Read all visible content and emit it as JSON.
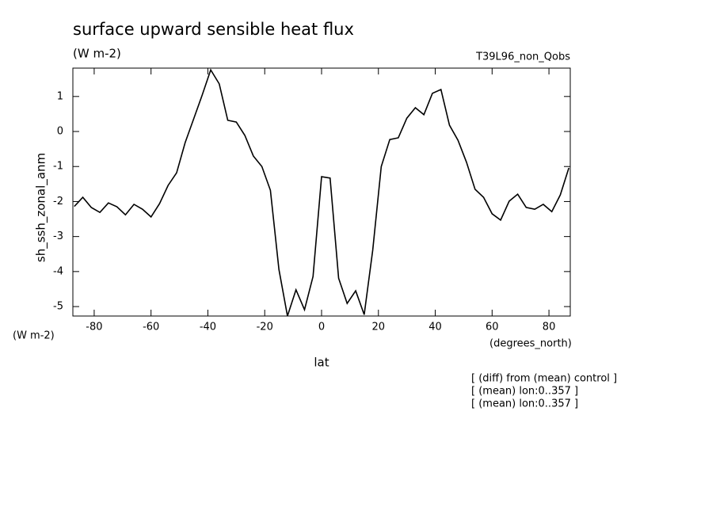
{
  "chart_data": {
    "type": "line",
    "title": "surface upward sensible heat flux",
    "units": "(W m-2)",
    "dataset": "T39L96_non_Qobs",
    "y_label": "sh_ssh_zonal_anm",
    "y_units": "(W m-2)",
    "x_units": "(degrees_north)",
    "x_label": "lat",
    "notes": [
      "[ (diff) from (mean) control ]",
      "[ (mean) lon:0..357 ]",
      "[ (mean) lon:0..357 ]"
    ],
    "x": [
      -87,
      -84,
      -81,
      -78,
      -75,
      -72,
      -69,
      -66,
      -63,
      -60,
      -57,
      -54,
      -51,
      -48,
      -45,
      -42,
      -39,
      -36,
      -33,
      -30,
      -27,
      -24,
      -21,
      -18,
      -15,
      -12,
      -9,
      -6,
      -3,
      0,
      3,
      6,
      9,
      12,
      15,
      18,
      21,
      24,
      27,
      30,
      33,
      36,
      39,
      42,
      45,
      48,
      51,
      54,
      57,
      60,
      63,
      66,
      69,
      72,
      75,
      78,
      81,
      84,
      87
    ],
    "values": [
      -2.14,
      -1.88,
      -2.17,
      -2.31,
      -2.04,
      -2.15,
      -2.38,
      -2.08,
      -2.22,
      -2.44,
      -2.06,
      -1.54,
      -1.18,
      -0.32,
      0.36,
      1.04,
      1.76,
      1.36,
      0.32,
      0.27,
      -0.11,
      -0.7,
      -1.0,
      -1.68,
      -3.94,
      -5.27,
      -4.52,
      -5.09,
      -4.14,
      -1.29,
      -1.33,
      -4.19,
      -4.91,
      -4.55,
      -5.23,
      -3.39,
      -1.0,
      -0.23,
      -0.18,
      0.38,
      0.68,
      0.48,
      1.09,
      1.2,
      0.18,
      -0.25,
      -0.88,
      -1.65,
      -1.88,
      -2.35,
      -2.53,
      -1.99,
      -1.79,
      -2.17,
      -2.22,
      -2.08,
      -2.29,
      -1.81,
      -1.04
    ],
    "color": "#000000",
    "xlim": [
      -87.5,
      87.5
    ],
    "ylim": [
      -5.27,
      1.81
    ],
    "xticks": [
      -80,
      -60,
      -40,
      -20,
      0,
      20,
      40,
      60,
      80
    ],
    "yticks": [
      -5,
      -4,
      -3,
      -2,
      -1,
      0,
      1
    ]
  }
}
